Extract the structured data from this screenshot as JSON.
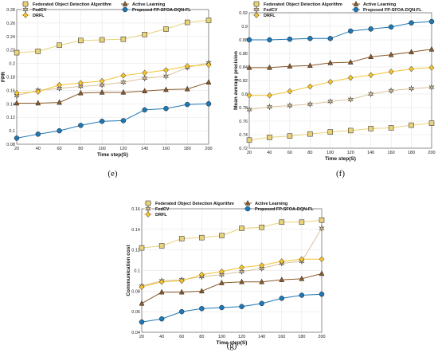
{
  "chart_data": [
    {
      "type": "line",
      "id": "e",
      "caption": "(e)",
      "xlabel": "Time step(S)",
      "ylabel": "FPR",
      "x": [
        20,
        40,
        60,
        80,
        100,
        120,
        140,
        160,
        180,
        200
      ],
      "xlim": [
        20,
        200
      ],
      "ylim": [
        0.08,
        0.28
      ],
      "yticks": [
        0.08,
        0.1,
        0.12,
        0.14,
        0.16,
        0.18,
        0.2,
        0.22,
        0.24,
        0.26,
        0.28
      ],
      "grid": true,
      "legend": "top",
      "series": [
        {
          "name": "Federated Object Detection Algorithm",
          "marker": "square",
          "color": "#e8d27a",
          "values": [
            0.216,
            0.218,
            0.227,
            0.234,
            0.235,
            0.236,
            0.243,
            0.251,
            0.261,
            0.264
          ]
        },
        {
          "name": "FedCV",
          "marker": "star",
          "color": "#d9c19a",
          "values": [
            0.152,
            0.16,
            0.163,
            0.166,
            0.168,
            0.172,
            0.178,
            0.181,
            0.194,
            0.201
          ]
        },
        {
          "name": "DRFL",
          "marker": "diamond",
          "color": "#f4c430",
          "values": [
            0.156,
            0.158,
            0.168,
            0.171,
            0.174,
            0.182,
            0.186,
            0.19,
            0.196,
            0.198
          ]
        },
        {
          "name": "Active Learning",
          "marker": "triangle",
          "color": "#8b5a2b",
          "values": [
            0.141,
            0.141,
            0.142,
            0.156,
            0.157,
            0.157,
            0.159,
            0.161,
            0.162,
            0.172
          ]
        },
        {
          "name": "Proposed FP-SFOA-DQN-FL",
          "marker": "circle",
          "color": "#1f77b4",
          "values": [
            0.089,
            0.095,
            0.1,
            0.108,
            0.114,
            0.115,
            0.131,
            0.133,
            0.139,
            0.14
          ]
        }
      ]
    },
    {
      "type": "line",
      "id": "f",
      "caption": "(f)",
      "xlabel": "Time step(S)",
      "ylabel": "Mean average precision",
      "x": [
        20,
        40,
        60,
        80,
        100,
        120,
        140,
        160,
        180,
        200
      ],
      "xlim": [
        20,
        200
      ],
      "ylim": [
        0.72,
        0.92
      ],
      "yticks": [
        0.72,
        0.74,
        0.76,
        0.78,
        0.8,
        0.82,
        0.84,
        0.86,
        0.88,
        0.9,
        0.92
      ],
      "grid": true,
      "legend": "top",
      "series": [
        {
          "name": "Federated Object Detection Algorithm",
          "marker": "square",
          "color": "#e8d27a",
          "values": [
            0.732,
            0.736,
            0.738,
            0.741,
            0.744,
            0.746,
            0.749,
            0.75,
            0.754,
            0.757
          ]
        },
        {
          "name": "FedCV",
          "marker": "star",
          "color": "#d9c19a",
          "values": [
            0.777,
            0.781,
            0.783,
            0.785,
            0.789,
            0.792,
            0.8,
            0.805,
            0.808,
            0.81
          ]
        },
        {
          "name": "DRFL",
          "marker": "diamond",
          "color": "#f4c430",
          "values": [
            0.798,
            0.798,
            0.804,
            0.811,
            0.818,
            0.824,
            0.828,
            0.833,
            0.837,
            0.839
          ]
        },
        {
          "name": "Active Learning",
          "marker": "triangle",
          "color": "#8b5a2b",
          "values": [
            0.839,
            0.839,
            0.841,
            0.842,
            0.846,
            0.847,
            0.855,
            0.858,
            0.862,
            0.866
          ]
        },
        {
          "name": "Proposed FP-SFOA-DQN-FL",
          "marker": "circle",
          "color": "#1f77b4",
          "values": [
            0.88,
            0.88,
            0.881,
            0.882,
            0.882,
            0.893,
            0.896,
            0.899,
            0.905,
            0.907
          ]
        }
      ]
    },
    {
      "type": "line",
      "id": "g",
      "caption": "(g)",
      "xlabel": "Time step(S)",
      "ylabel": "Communication cost",
      "x": [
        20,
        40,
        60,
        80,
        100,
        120,
        140,
        160,
        180,
        200
      ],
      "xlim": [
        20,
        200
      ],
      "ylim": [
        0.04,
        0.16
      ],
      "yticks": [
        0.04,
        0.06,
        0.08,
        0.1,
        0.12,
        0.14,
        0.16
      ],
      "grid": true,
      "legend": "top",
      "series": [
        {
          "name": "Federated Object Detection Algorithm",
          "marker": "square",
          "color": "#e8d27a",
          "values": [
            0.122,
            0.124,
            0.131,
            0.132,
            0.134,
            0.141,
            0.142,
            0.147,
            0.147,
            0.149
          ]
        },
        {
          "name": "FedCV",
          "marker": "star",
          "color": "#d9c19a",
          "values": [
            0.085,
            0.09,
            0.091,
            0.094,
            0.096,
            0.099,
            0.102,
            0.107,
            0.109,
            0.141
          ]
        },
        {
          "name": "DRFL",
          "marker": "diamond",
          "color": "#f4c430",
          "values": [
            0.084,
            0.089,
            0.09,
            0.096,
            0.099,
            0.103,
            0.105,
            0.109,
            0.111,
            0.111
          ]
        },
        {
          "name": "Active Learning",
          "marker": "triangle",
          "color": "#8b5a2b",
          "values": [
            0.068,
            0.079,
            0.079,
            0.08,
            0.088,
            0.089,
            0.089,
            0.091,
            0.092,
            0.097
          ]
        },
        {
          "name": "Proposed FP-SFOA-DQN-FL",
          "marker": "circle",
          "color": "#1f77b4",
          "values": [
            0.05,
            0.053,
            0.06,
            0.063,
            0.064,
            0.065,
            0.068,
            0.073,
            0.076,
            0.077
          ]
        }
      ]
    }
  ]
}
